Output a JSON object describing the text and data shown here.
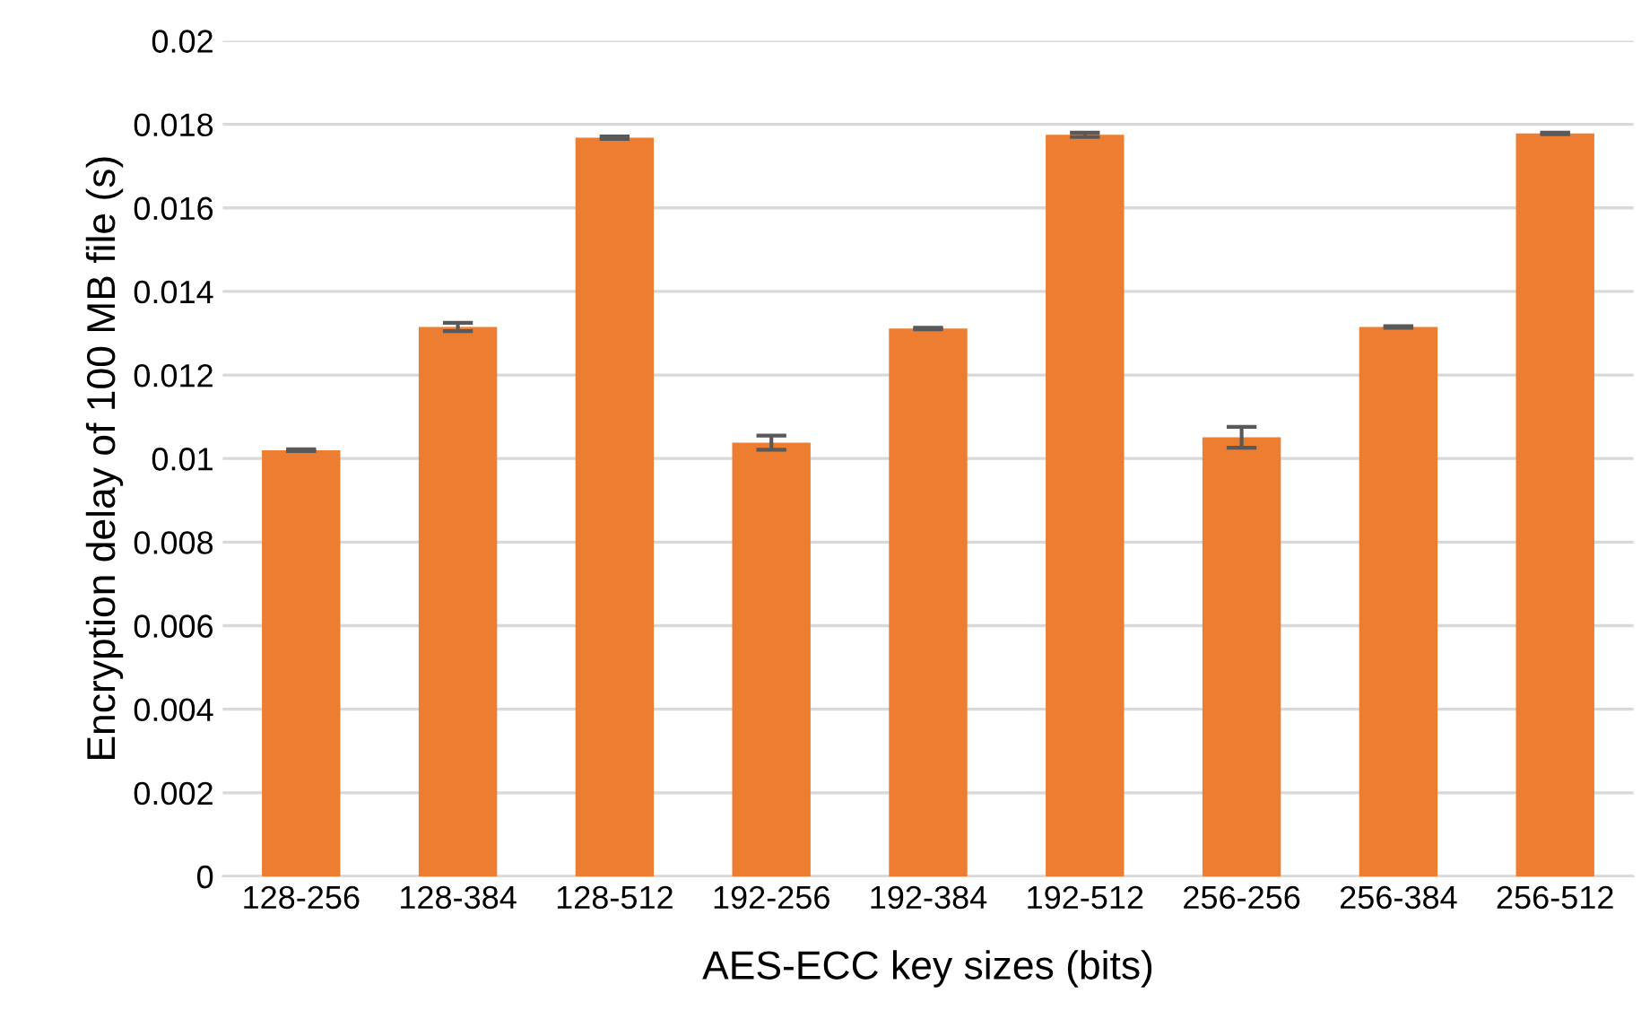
{
  "chart_data": {
    "type": "bar",
    "xlabel": "AES-ECC key sizes (bits)",
    "ylabel": "Encryption delay of 100 MB file (s)",
    "categories": [
      "128-256",
      "128-384",
      "128-512",
      "192-256",
      "192-384",
      "192-512",
      "256-256",
      "256-384",
      "256-512"
    ],
    "values": [
      0.0102,
      0.01315,
      0.01768,
      0.01038,
      0.01311,
      0.01775,
      0.01051,
      0.01315,
      0.01778
    ],
    "errors": [
      2e-05,
      0.0001,
      3e-05,
      0.00017,
      2e-05,
      5e-05,
      0.00025,
      2e-05,
      2e-05
    ],
    "color": "#ed7d31",
    "ylim": [
      0,
      0.02
    ],
    "yticks": [
      0,
      0.002,
      0.004,
      0.006,
      0.008,
      0.01,
      0.012,
      0.014,
      0.016,
      0.018,
      0.02
    ],
    "grid": "y",
    "legend": false
  }
}
